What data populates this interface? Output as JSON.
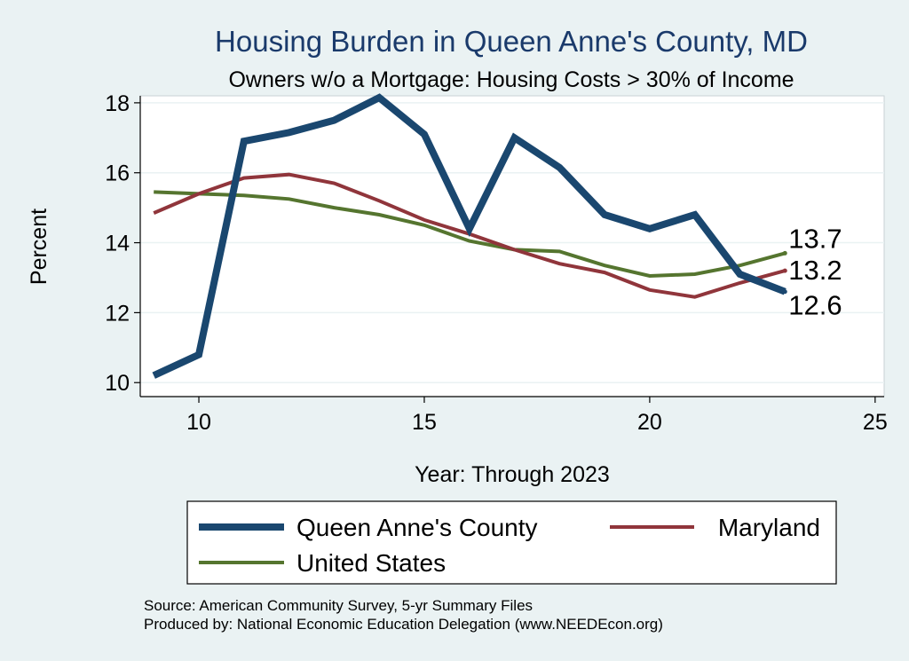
{
  "chart_data": {
    "type": "line",
    "title": "Housing Burden in Queen Anne's County, MD",
    "subtitle": "Owners w/o a Mortgage: Housing Costs > 30% of Income",
    "xlabel": "Year: Through 2023",
    "ylabel": "Percent",
    "xlim": [
      8.7,
      25.2
    ],
    "ylim": [
      9.6,
      18.2
    ],
    "xticks": [
      "10",
      "15",
      "20",
      "25"
    ],
    "yticks": [
      "10",
      "12",
      "14",
      "16",
      "18"
    ],
    "grid": true,
    "legend": "bottom",
    "series": [
      {
        "name": "Queen Anne's County",
        "color": "#1a476f",
        "x": [
          9,
          10,
          11,
          12,
          13,
          14,
          15,
          16,
          17,
          18,
          19,
          20,
          21,
          22,
          23
        ],
        "values": [
          10.2,
          10.8,
          16.9,
          17.15,
          17.5,
          18.15,
          17.1,
          14.4,
          17.0,
          16.15,
          14.8,
          14.4,
          14.8,
          13.1,
          12.6
        ]
      },
      {
        "name": "Maryland",
        "color": "#90353b",
        "x": [
          9,
          10,
          11,
          12,
          13,
          14,
          15,
          16,
          17,
          18,
          19,
          20,
          21,
          22,
          23
        ],
        "values": [
          14.85,
          15.4,
          15.85,
          15.95,
          15.7,
          15.2,
          14.65,
          14.25,
          13.8,
          13.4,
          13.15,
          12.65,
          12.45,
          12.85,
          13.2
        ]
      },
      {
        "name": "United States",
        "color": "#55752f",
        "x": [
          9,
          10,
          11,
          12,
          13,
          14,
          15,
          16,
          17,
          18,
          19,
          20,
          21,
          22,
          23
        ],
        "values": [
          15.45,
          15.4,
          15.35,
          15.25,
          15.0,
          14.8,
          14.5,
          14.05,
          13.8,
          13.75,
          13.35,
          13.05,
          13.1,
          13.35,
          13.7
        ]
      }
    ],
    "end_labels": [
      "13.7",
      "13.2",
      "12.6"
    ],
    "source_lines": [
      "Source: American Community Survey, 5-yr Summary Files",
      "Produced by: National Economic Education Delegation (www.NEEDEcon.org)"
    ]
  }
}
